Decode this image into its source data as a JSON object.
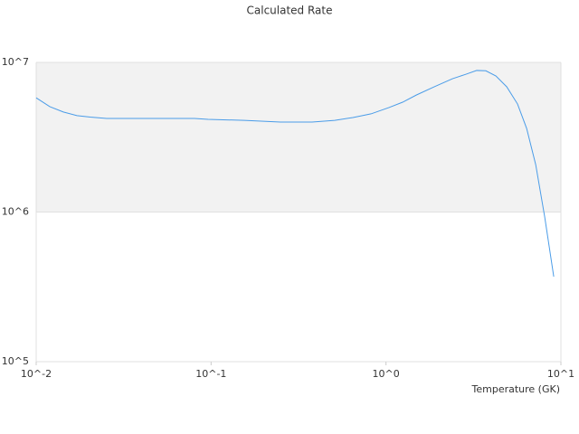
{
  "chart_data": {
    "type": "line",
    "title": "Calculated Rate",
    "x_label": "Temperature (GK)",
    "x_log": true,
    "y_log": true,
    "xlim": [
      0.01,
      10
    ],
    "xticks": [
      {
        "value": 0.01,
        "label": "10^-2"
      },
      {
        "value": 0.1,
        "label": "10^-1"
      },
      {
        "value": 1,
        "label": "10^0"
      },
      {
        "value": 10,
        "label": "10^1"
      }
    ],
    "ylim": [
      100000,
      10000000
    ],
    "yticks": [
      {
        "value": 100000,
        "label": "10^5"
      },
      {
        "value": 1000000,
        "label": "10^6"
      },
      {
        "value": 10000000,
        "label": "10^7"
      }
    ],
    "band_color": "#f2f2f2",
    "color": "#4a9ce8",
    "x": [
      0.01,
      0.01196,
      0.0143,
      0.0171,
      0.0204,
      0.0253,
      0.0418,
      0.0804,
      0.0961,
      0.155,
      0.249,
      0.378,
      0.509,
      0.647,
      0.821,
      1.04,
      1.245,
      1.49,
      1.89,
      2.4,
      2.87,
      3.3,
      3.72,
      4.25,
      4.9,
      5.65,
      6.37,
      7.18,
      8.08,
      9.1
    ],
    "values": [
      5800000,
      5060000,
      4660000,
      4410000,
      4310000,
      4220000,
      4220000,
      4220000,
      4160000,
      4100000,
      3990000,
      3990000,
      4100000,
      4280000,
      4530000,
      4990000,
      5420000,
      6050000,
      6870000,
      7780000,
      8340000,
      8830000,
      8790000,
      8110000,
      6870000,
      5270000,
      3620000,
      2070000,
      927000,
      370000
    ]
  }
}
